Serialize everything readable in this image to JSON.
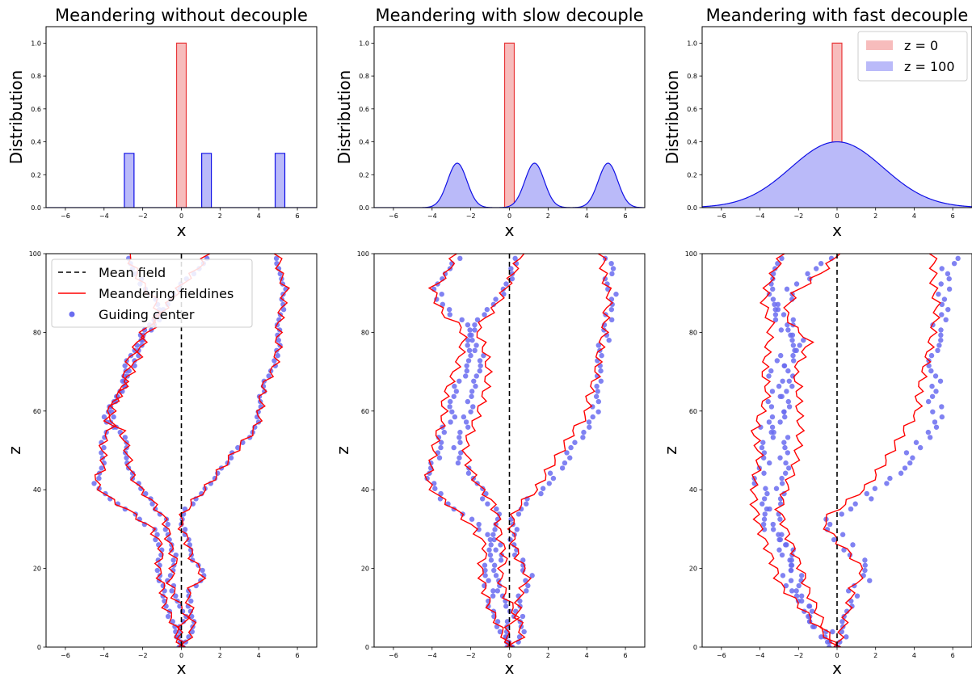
{
  "figure": {
    "panels_top": [
      {
        "title": "Meandering without decouple",
        "ylabel": "Distribution",
        "xlabel": "x"
      },
      {
        "title": "Meandering with slow decouple",
        "ylabel": "Distribution",
        "xlabel": "x"
      },
      {
        "title": "Meandering with fast decouple",
        "ylabel": "Distribution",
        "xlabel": "x"
      }
    ],
    "panels_bottom": [
      {
        "ylabel": "z",
        "xlabel": "x"
      },
      {
        "ylabel": "z",
        "xlabel": "x"
      },
      {
        "ylabel": "z",
        "xlabel": "x"
      }
    ],
    "legend_top": {
      "labels": [
        "z = 0",
        "z = 100"
      ],
      "placement": "upper-right of third distribution panel"
    },
    "legend_bottom": {
      "labels": [
        "Mean field",
        "Meandering fieldines",
        "Guiding center"
      ],
      "placement": "upper-left of first trajectory panel"
    },
    "colors": {
      "z0_fill": "#f7bcbc",
      "z0_edge": "#e8383a",
      "z100_fill": "#babaf9",
      "z100_edge": "#1010e6",
      "line": "#ff0000",
      "points": "#6a6cf0",
      "mean": "#000000"
    }
  },
  "chart_data": [
    {
      "type": "area",
      "panel": "distribution",
      "title": "Meandering without decouple",
      "xlabel": "x",
      "ylabel": "Distribution",
      "xlim": [
        -7,
        7
      ],
      "ylim": [
        0,
        1.1
      ],
      "xticks": [
        -6,
        -4,
        -2,
        0,
        2,
        4,
        6
      ],
      "yticks": [
        0.0,
        0.2,
        0.4,
        0.6,
        0.8,
        1.0
      ],
      "series": [
        {
          "name": "z = 0",
          "kind": "box",
          "bars": [
            {
              "x0": -0.25,
              "x1": 0.25,
              "height": 1.0
            }
          ]
        },
        {
          "name": "z = 100",
          "kind": "box",
          "bars": [
            {
              "x0": -2.95,
              "x1": -2.45,
              "height": 0.33
            },
            {
              "x0": 1.05,
              "x1": 1.55,
              "height": 0.33
            },
            {
              "x0": 4.85,
              "x1": 5.35,
              "height": 0.33
            }
          ]
        }
      ]
    },
    {
      "type": "area",
      "panel": "distribution",
      "title": "Meandering with slow decouple",
      "xlabel": "x",
      "ylabel": "Distribution",
      "xlim": [
        -7,
        7
      ],
      "ylim": [
        0,
        1.1
      ],
      "xticks": [
        -6,
        -4,
        -2,
        0,
        2,
        4,
        6
      ],
      "yticks": [
        0.0,
        0.2,
        0.4,
        0.6,
        0.8,
        1.0
      ],
      "series": [
        {
          "name": "z = 0",
          "kind": "box",
          "bars": [
            {
              "x0": -0.25,
              "x1": 0.25,
              "height": 1.0
            }
          ]
        },
        {
          "name": "z = 100",
          "kind": "gaussians",
          "peaks": [
            {
              "mu": -2.7,
              "sigma": 0.5,
              "height": 0.27
            },
            {
              "mu": 1.3,
              "sigma": 0.5,
              "height": 0.27
            },
            {
              "mu": 5.1,
              "sigma": 0.5,
              "height": 0.27
            }
          ]
        }
      ]
    },
    {
      "type": "area",
      "panel": "distribution",
      "title": "Meandering with fast decouple",
      "xlabel": "x",
      "ylabel": "Distribution",
      "xlim": [
        -7,
        7
      ],
      "ylim": [
        0,
        1.1
      ],
      "xticks": [
        -6,
        -4,
        -2,
        0,
        2,
        4,
        6
      ],
      "yticks": [
        0.0,
        0.2,
        0.4,
        0.6,
        0.8,
        1.0
      ],
      "series": [
        {
          "name": "z = 0",
          "kind": "box",
          "bars": [
            {
              "x0": -0.25,
              "x1": 0.25,
              "height": 1.0
            }
          ]
        },
        {
          "name": "z = 100",
          "kind": "gaussians",
          "peaks": [
            {
              "mu": 0.0,
              "sigma": 2.4,
              "height": 0.4
            }
          ]
        }
      ]
    },
    {
      "type": "line",
      "panel": "trajectory",
      "xlabel": "x",
      "ylabel": "z",
      "xlim": [
        -7,
        7
      ],
      "ylim": [
        0,
        100
      ],
      "xticks": [
        -6,
        -4,
        -2,
        0,
        2,
        4,
        6
      ],
      "yticks": [
        0,
        20,
        40,
        60,
        80,
        100
      ],
      "mean_field_x": 0,
      "fieldlines": [
        {
          "points": [
            [
              0.0,
              0
            ],
            [
              -0.3,
              5
            ],
            [
              -0.8,
              10
            ],
            [
              -1.0,
              16
            ],
            [
              -1.2,
              20
            ],
            [
              -1.0,
              25
            ],
            [
              -1.5,
              30
            ],
            [
              -2.8,
              35
            ],
            [
              -3.8,
              38
            ],
            [
              -4.5,
              42
            ],
            [
              -4.0,
              46
            ],
            [
              -4.1,
              52
            ],
            [
              -3.6,
              56
            ],
            [
              -3.6,
              61
            ],
            [
              -3.0,
              66
            ],
            [
              -2.8,
              72
            ],
            [
              -2.4,
              76
            ],
            [
              -2.0,
              80
            ],
            [
              -0.7,
              87
            ],
            [
              0.0,
              92
            ],
            [
              0.8,
              96
            ],
            [
              1.4,
              100
            ]
          ]
        },
        {
          "points": [
            [
              0.0,
              0
            ],
            [
              -0.2,
              3
            ],
            [
              0.3,
              8
            ],
            [
              -0.3,
              12
            ],
            [
              -0.6,
              17
            ],
            [
              -0.3,
              22
            ],
            [
              -0.6,
              26
            ],
            [
              -0.8,
              32
            ],
            [
              -1.5,
              37
            ],
            [
              -2.1,
              40
            ],
            [
              -2.6,
              44
            ],
            [
              -2.8,
              50
            ],
            [
              -3.1,
              55
            ],
            [
              -4.0,
              58
            ],
            [
              -3.5,
              62
            ],
            [
              -3.0,
              66
            ],
            [
              -2.6,
              70
            ],
            [
              -2.2,
              74
            ],
            [
              -1.9,
              79
            ],
            [
              -1.2,
              83
            ],
            [
              -1.3,
              88
            ],
            [
              -2.0,
              92
            ],
            [
              -2.4,
              96
            ],
            [
              -2.8,
              100
            ]
          ]
        },
        {
          "points": [
            [
              0.0,
              0
            ],
            [
              0.6,
              4
            ],
            [
              0.5,
              9
            ],
            [
              0.3,
              14
            ],
            [
              1.2,
              18
            ],
            [
              0.6,
              22
            ],
            [
              0.3,
              27
            ],
            [
              -0.1,
              32
            ],
            [
              0.4,
              36
            ],
            [
              1.2,
              40
            ],
            [
              2.0,
              45
            ],
            [
              3.0,
              51
            ],
            [
              3.9,
              56
            ],
            [
              4.1,
              61
            ],
            [
              4.2,
              66
            ],
            [
              4.8,
              71
            ],
            [
              5.0,
              76
            ],
            [
              5.0,
              81
            ],
            [
              5.2,
              86
            ],
            [
              5.4,
              91
            ],
            [
              5.1,
              95
            ],
            [
              5.0,
              100
            ]
          ]
        }
      ],
      "guiding_center_offset": 0.0
    },
    {
      "type": "scatter",
      "panel": "trajectory",
      "xlabel": "x",
      "ylabel": "z",
      "xlim": [
        -7,
        7
      ],
      "ylim": [
        0,
        100
      ],
      "xticks": [
        -6,
        -4,
        -2,
        0,
        2,
        4,
        6
      ],
      "yticks": [
        0,
        20,
        40,
        60,
        80,
        100
      ],
      "mean_field_x": 0,
      "fieldlines": [
        {
          "points": [
            [
              0.0,
              0
            ],
            [
              -0.5,
              5
            ],
            [
              -1.0,
              10
            ],
            [
              -1.3,
              15
            ],
            [
              -1.5,
              20
            ],
            [
              -1.2,
              25
            ],
            [
              -1.8,
              30
            ],
            [
              -2.8,
              35
            ],
            [
              -3.6,
              38
            ],
            [
              -4.3,
              42
            ],
            [
              -4.0,
              47
            ],
            [
              -3.8,
              53
            ],
            [
              -3.4,
              58
            ],
            [
              -3.4,
              63
            ],
            [
              -3.0,
              68
            ],
            [
              -2.6,
              73
            ],
            [
              -2.4,
              77
            ],
            [
              -2.4,
              81
            ],
            [
              -3.5,
              85
            ],
            [
              -4.0,
              91
            ],
            [
              -3.2,
              95
            ],
            [
              -2.8,
              100
            ]
          ]
        },
        {
          "points": [
            [
              0.0,
              0
            ],
            [
              -0.2,
              4
            ],
            [
              0.4,
              8
            ],
            [
              -0.2,
              13
            ],
            [
              -0.5,
              18
            ],
            [
              -0.2,
              23
            ],
            [
              -0.5,
              28
            ],
            [
              -0.6,
              33
            ],
            [
              -0.9,
              37
            ],
            [
              -1.6,
              41
            ],
            [
              -2.1,
              46
            ],
            [
              -2.3,
              51
            ],
            [
              -1.9,
              56
            ],
            [
              -1.5,
              61
            ],
            [
              -1.2,
              66
            ],
            [
              -1.1,
              71
            ],
            [
              -1.3,
              76
            ],
            [
              -1.7,
              81
            ],
            [
              -0.8,
              86
            ],
            [
              -0.2,
              91
            ],
            [
              0.2,
              95
            ],
            [
              0.6,
              100
            ]
          ]
        },
        {
          "points": [
            [
              0.0,
              0
            ],
            [
              0.7,
              3
            ],
            [
              0.4,
              8
            ],
            [
              0.5,
              13
            ],
            [
              1.0,
              18
            ],
            [
              0.5,
              22
            ],
            [
              0.2,
              27
            ],
            [
              0.1,
              32
            ],
            [
              0.5,
              36
            ],
            [
              1.4,
              40
            ],
            [
              2.0,
              45
            ],
            [
              2.7,
              50
            ],
            [
              3.3,
              55
            ],
            [
              4.0,
              59
            ],
            [
              4.1,
              64
            ],
            [
              4.5,
              69
            ],
            [
              4.6,
              74
            ],
            [
              4.9,
              80
            ],
            [
              5.0,
              85
            ],
            [
              5.2,
              89
            ],
            [
              4.9,
              94
            ],
            [
              4.8,
              100
            ]
          ]
        }
      ],
      "guiding_center_offset": 0.5
    },
    {
      "type": "scatter",
      "panel": "trajectory",
      "xlabel": "x",
      "ylabel": "z",
      "xlim": [
        -7,
        7
      ],
      "ylim": [
        0,
        100
      ],
      "xticks": [
        -6,
        -4,
        -2,
        0,
        2,
        4,
        6
      ],
      "yticks": [
        0,
        20,
        40,
        60,
        80,
        100
      ],
      "mean_field_x": 0,
      "fieldlines": [
        {
          "points": [
            [
              0.0,
              0
            ],
            [
              -0.8,
              4
            ],
            [
              -1.5,
              8
            ],
            [
              -2.2,
              12
            ],
            [
              -3.0,
              16
            ],
            [
              -3.2,
              20
            ],
            [
              -3.6,
              25
            ],
            [
              -4.0,
              30
            ],
            [
              -4.3,
              36
            ],
            [
              -4.3,
              42
            ],
            [
              -4.0,
              48
            ],
            [
              -4.3,
              55
            ],
            [
              -3.9,
              60
            ],
            [
              -3.6,
              65
            ],
            [
              -3.8,
              70
            ],
            [
              -3.6,
              76
            ],
            [
              -3.4,
              82
            ],
            [
              -3.8,
              87
            ],
            [
              -3.6,
              92
            ],
            [
              -3.2,
              96
            ],
            [
              -2.8,
              100
            ]
          ]
        },
        {
          "points": [
            [
              0.0,
              0
            ],
            [
              -0.6,
              4
            ],
            [
              -1.0,
              9
            ],
            [
              -1.5,
              14
            ],
            [
              -1.8,
              19
            ],
            [
              -2.2,
              24
            ],
            [
              -2.6,
              29
            ],
            [
              -3.0,
              35
            ],
            [
              -2.6,
              41
            ],
            [
              -2.2,
              46
            ],
            [
              -2.0,
              51
            ],
            [
              -1.9,
              56
            ],
            [
              -2.0,
              61
            ],
            [
              -2.0,
              66
            ],
            [
              -2.2,
              70
            ],
            [
              -1.7,
              75
            ],
            [
              -1.4,
              78
            ],
            [
              -2.2,
              81
            ],
            [
              -2.7,
              85
            ],
            [
              -2.2,
              90
            ],
            [
              -0.6,
              96
            ],
            [
              0.0,
              100
            ]
          ]
        },
        {
          "points": [
            [
              0.0,
              0
            ],
            [
              0.3,
              5
            ],
            [
              0.6,
              10
            ],
            [
              0.8,
              15
            ],
            [
              1.4,
              19
            ],
            [
              0.8,
              23
            ],
            [
              0.0,
              27
            ],
            [
              -0.8,
              32
            ],
            [
              0.3,
              36
            ],
            [
              1.6,
              41
            ],
            [
              2.6,
              48
            ],
            [
              3.6,
              56
            ],
            [
              4.2,
              60
            ],
            [
              4.2,
              64
            ],
            [
              4.4,
              68
            ],
            [
              4.6,
              72
            ],
            [
              4.8,
              76
            ],
            [
              5.0,
              81
            ],
            [
              5.2,
              86
            ],
            [
              5.0,
              92
            ],
            [
              5.0,
              100
            ]
          ]
        }
      ],
      "guiding_center_offset": 1.2
    }
  ]
}
